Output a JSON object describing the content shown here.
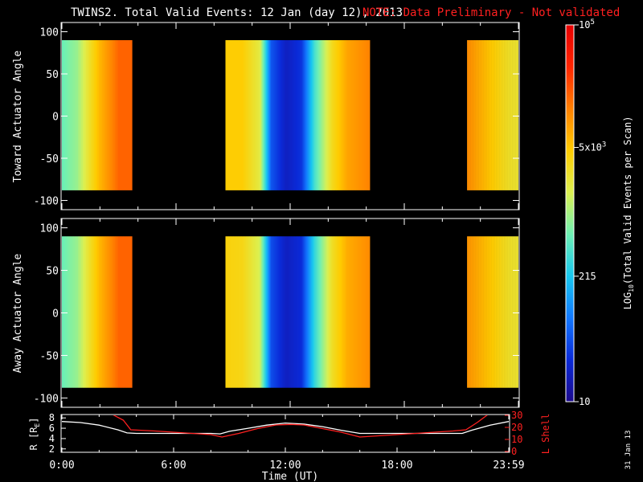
{
  "header": {
    "title": "TWINS2. Total Valid Events: 12 Jan (day  12), 2013",
    "note": "NOTE: Data Preliminary - Not validated",
    "note_color": "#ff2020"
  },
  "side_date": "31 Jan 13",
  "chart_data": [
    {
      "type": "heatmap",
      "panel": "toward",
      "ylabel": "Toward Actuator Angle",
      "ylim": [
        -110,
        110
      ],
      "yticks": [
        "100",
        "50",
        "0",
        "-50",
        "-100"
      ],
      "xlim": [
        0,
        24
      ],
      "data_y_range": [
        -88,
        90
      ],
      "data_segments": [
        {
          "start": 0.0,
          "end": 3.7
        },
        {
          "start": 8.6,
          "end": 16.2
        },
        {
          "start": 21.3,
          "end": 24.0
        }
      ],
      "time_profile_log_counts": [
        [
          0.0,
          2.75
        ],
        [
          0.8,
          2.95
        ],
        [
          1.4,
          3.4
        ],
        [
          2.0,
          3.8
        ],
        [
          3.0,
          4.25
        ],
        [
          3.7,
          4.25
        ],
        [
          8.6,
          3.65
        ],
        [
          9.5,
          3.65
        ],
        [
          10.4,
          3.3
        ],
        [
          11.0,
          1.7
        ],
        [
          11.8,
          1.3
        ],
        [
          12.6,
          1.5
        ],
        [
          13.3,
          2.6
        ],
        [
          14.2,
          3.5
        ],
        [
          15.0,
          3.9
        ],
        [
          16.2,
          4.1
        ],
        [
          21.3,
          4.05
        ],
        [
          22.5,
          3.7
        ],
        [
          23.5,
          3.45
        ],
        [
          24.0,
          3.4
        ]
      ]
    },
    {
      "type": "heatmap",
      "panel": "away",
      "ylabel": "Away Actuator Angle",
      "ylim": [
        -110,
        110
      ],
      "yticks": [
        "100",
        "50",
        "0",
        "-50",
        "-100"
      ],
      "xlim": [
        0,
        24
      ],
      "data_y_range": [
        -88,
        90
      ],
      "data_segments": [
        {
          "start": 0.0,
          "end": 3.7
        },
        {
          "start": 8.6,
          "end": 16.2
        },
        {
          "start": 21.3,
          "end": 24.0
        }
      ],
      "time_profile_log_counts": [
        [
          0.0,
          2.75
        ],
        [
          0.8,
          2.95
        ],
        [
          1.4,
          3.4
        ],
        [
          2.0,
          3.8
        ],
        [
          3.0,
          4.25
        ],
        [
          3.7,
          4.25
        ],
        [
          8.6,
          3.6
        ],
        [
          9.5,
          3.55
        ],
        [
          10.4,
          3.2
        ],
        [
          11.0,
          1.65
        ],
        [
          11.8,
          1.3
        ],
        [
          12.6,
          1.45
        ],
        [
          13.3,
          2.5
        ],
        [
          14.2,
          3.45
        ],
        [
          15.0,
          3.85
        ],
        [
          16.2,
          4.05
        ],
        [
          21.3,
          4.0
        ],
        [
          22.5,
          3.7
        ],
        [
          23.5,
          3.45
        ],
        [
          24.0,
          3.4
        ]
      ]
    },
    {
      "type": "line",
      "panel": "orbit",
      "ylabel": "R [R",
      "ylabel_sub": "E",
      "ylabel_end": "]",
      "ylim": [
        1.5,
        8.5
      ],
      "yticks": [
        "8",
        "6",
        "4",
        "2"
      ],
      "y2label": "L Shell",
      "y2lim": [
        0,
        30
      ],
      "y2ticks": [
        "30",
        "20",
        "10",
        "0"
      ],
      "y2_color": "#ff2020",
      "xlim": [
        0,
        24
      ],
      "xticks": [
        "0:00",
        "6:00",
        "12:00",
        "18:00",
        "23:59"
      ],
      "xlabel": "Time (UT)",
      "series": [
        {
          "axis": "left",
          "color": "#ffffff",
          "x": [
            0,
            1,
            2,
            3,
            3.5,
            4,
            5,
            6,
            7,
            8,
            8.5,
            9,
            10,
            11,
            12,
            13,
            14,
            15,
            16,
            17,
            18,
            19,
            20,
            21,
            21.5,
            22,
            23,
            24
          ],
          "y": [
            7.3,
            7.1,
            6.6,
            5.7,
            5.1,
            5.0,
            5.0,
            5.0,
            5.0,
            5.0,
            4.9,
            5.4,
            6.0,
            6.6,
            7.0,
            6.8,
            6.3,
            5.6,
            5.0,
            5.0,
            5.0,
            5.0,
            5.0,
            5.0,
            5.0,
            5.6,
            6.6,
            7.3
          ]
        },
        {
          "axis": "right",
          "color": "#ff2020",
          "x": [
            2.3,
            3.3,
            3.7,
            5,
            6,
            7,
            8,
            8.6,
            9.5,
            10.5,
            11.5,
            12.3,
            13,
            14,
            15,
            16,
            17,
            18,
            19,
            20,
            21,
            21.7,
            22.3,
            23.0
          ],
          "y": [
            34,
            26,
            18,
            17,
            16,
            15,
            14,
            12,
            15,
            19,
            22,
            22.5,
            22,
            19,
            16,
            12,
            13,
            14,
            15,
            16,
            17,
            18,
            24,
            32
          ]
        }
      ]
    }
  ],
  "colorbar": {
    "label": "LOG",
    "label_sub": "10",
    "label_rest": "(Total Valid Events per Scan)",
    "range_log": [
      1.0,
      5.0
    ],
    "ticks": [
      {
        "value": 1.0,
        "text": "10",
        "sup": ""
      },
      {
        "value": 2.332,
        "text": "215",
        "sup": ""
      },
      {
        "value": 3.699,
        "text": "5x10",
        "sup": "3"
      },
      {
        "value": 5.0,
        "text": "10",
        "sup": "5"
      }
    ],
    "colors": [
      "#1c0a8c",
      "#0a2ad8",
      "#1278ff",
      "#18c8f0",
      "#6ef0b4",
      "#dcf050",
      "#ffcc00",
      "#ff8000",
      "#ff2400",
      "#e80000"
    ]
  }
}
